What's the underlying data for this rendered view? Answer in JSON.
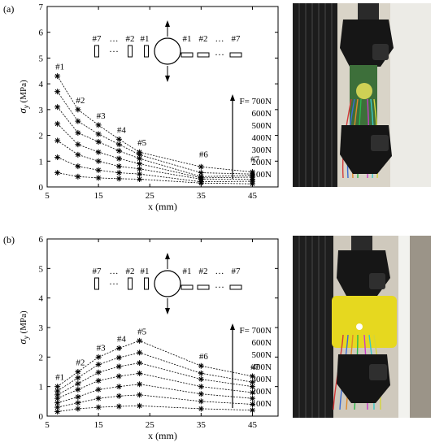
{
  "panels": [
    {
      "label": "(a)",
      "photo_desc": "tensile test photo with green specimen"
    },
    {
      "label": "(b)",
      "photo_desc": "tensile test photo with yellow specimen"
    }
  ],
  "chart_data": [
    {
      "type": "line",
      "panel": "(a)",
      "xlabel": "x (mm)",
      "ylabel": "σ_y (MPa)",
      "xlim": [
        5,
        50
      ],
      "ylim": [
        0,
        7
      ],
      "xticks": [
        5,
        15,
        25,
        35,
        45
      ],
      "yticks": [
        0,
        1,
        2,
        3,
        4,
        5,
        6,
        7
      ],
      "x": [
        7,
        11,
        15,
        19,
        23,
        35,
        45
      ],
      "point_labels": [
        "#1",
        "#2",
        "#3",
        "#4",
        "#5",
        "#6",
        "#7"
      ],
      "series": [
        {
          "name": "100N",
          "values": [
            0.55,
            0.4,
            0.35,
            0.32,
            0.3,
            0.15,
            0.12
          ]
        },
        {
          "name": "200N",
          "values": [
            1.15,
            0.8,
            0.65,
            0.55,
            0.5,
            0.2,
            0.22
          ]
        },
        {
          "name": "300N",
          "values": [
            1.8,
            1.25,
            1.0,
            0.8,
            0.7,
            0.3,
            0.3
          ]
        },
        {
          "name": "400N",
          "values": [
            2.45,
            1.65,
            1.35,
            1.1,
            0.9,
            0.35,
            0.38
          ]
        },
        {
          "name": "500N",
          "values": [
            3.1,
            2.1,
            1.75,
            1.4,
            1.1,
            0.4,
            0.45
          ]
        },
        {
          "name": "600N",
          "values": [
            3.7,
            2.55,
            2.05,
            1.65,
            1.25,
            0.55,
            0.5
          ]
        },
        {
          "name": "700N",
          "values": [
            4.3,
            3.0,
            2.4,
            1.85,
            1.35,
            0.78,
            0.58
          ]
        }
      ],
      "force_prefix": "F= ",
      "schematic_labels": {
        "left": [
          "#7",
          "…",
          "#2",
          "#1"
        ],
        "right": [
          "#1",
          "#2",
          "…",
          "#7"
        ]
      }
    },
    {
      "type": "line",
      "panel": "(b)",
      "xlabel": "x (mm)",
      "ylabel": "σ_y (MPa)",
      "xlim": [
        5,
        50
      ],
      "ylim": [
        0,
        6
      ],
      "xticks": [
        5,
        15,
        25,
        35,
        45
      ],
      "yticks": [
        0,
        1,
        2,
        3,
        4,
        5,
        6
      ],
      "x": [
        7,
        11,
        15,
        19,
        23,
        35,
        45
      ],
      "point_labels": [
        "#1",
        "#2",
        "#3",
        "#4",
        "#5",
        "#6",
        "#7"
      ],
      "series": [
        {
          "name": "100N",
          "values": [
            0.15,
            0.25,
            0.3,
            0.33,
            0.35,
            0.25,
            0.2
          ]
        },
        {
          "name": "200N",
          "values": [
            0.3,
            0.45,
            0.6,
            0.68,
            0.72,
            0.5,
            0.4
          ]
        },
        {
          "name": "300N",
          "values": [
            0.45,
            0.65,
            0.9,
            1.0,
            1.08,
            0.75,
            0.6
          ]
        },
        {
          "name": "400N",
          "values": [
            0.6,
            0.9,
            1.2,
            1.35,
            1.45,
            1.0,
            0.8
          ]
        },
        {
          "name": "500N",
          "values": [
            0.72,
            1.1,
            1.48,
            1.68,
            1.8,
            1.25,
            1.0
          ]
        },
        {
          "name": "600N",
          "values": [
            0.85,
            1.3,
            1.75,
            1.98,
            2.15,
            1.45,
            1.15
          ]
        },
        {
          "name": "700N",
          "values": [
            1.0,
            1.5,
            2.0,
            2.3,
            2.55,
            1.7,
            1.35
          ]
        }
      ],
      "force_prefix": "F= ",
      "schematic_labels": {
        "left": [
          "#7",
          "…",
          "#2",
          "#1"
        ],
        "right": [
          "#1",
          "#2",
          "…",
          "#7"
        ]
      }
    }
  ]
}
